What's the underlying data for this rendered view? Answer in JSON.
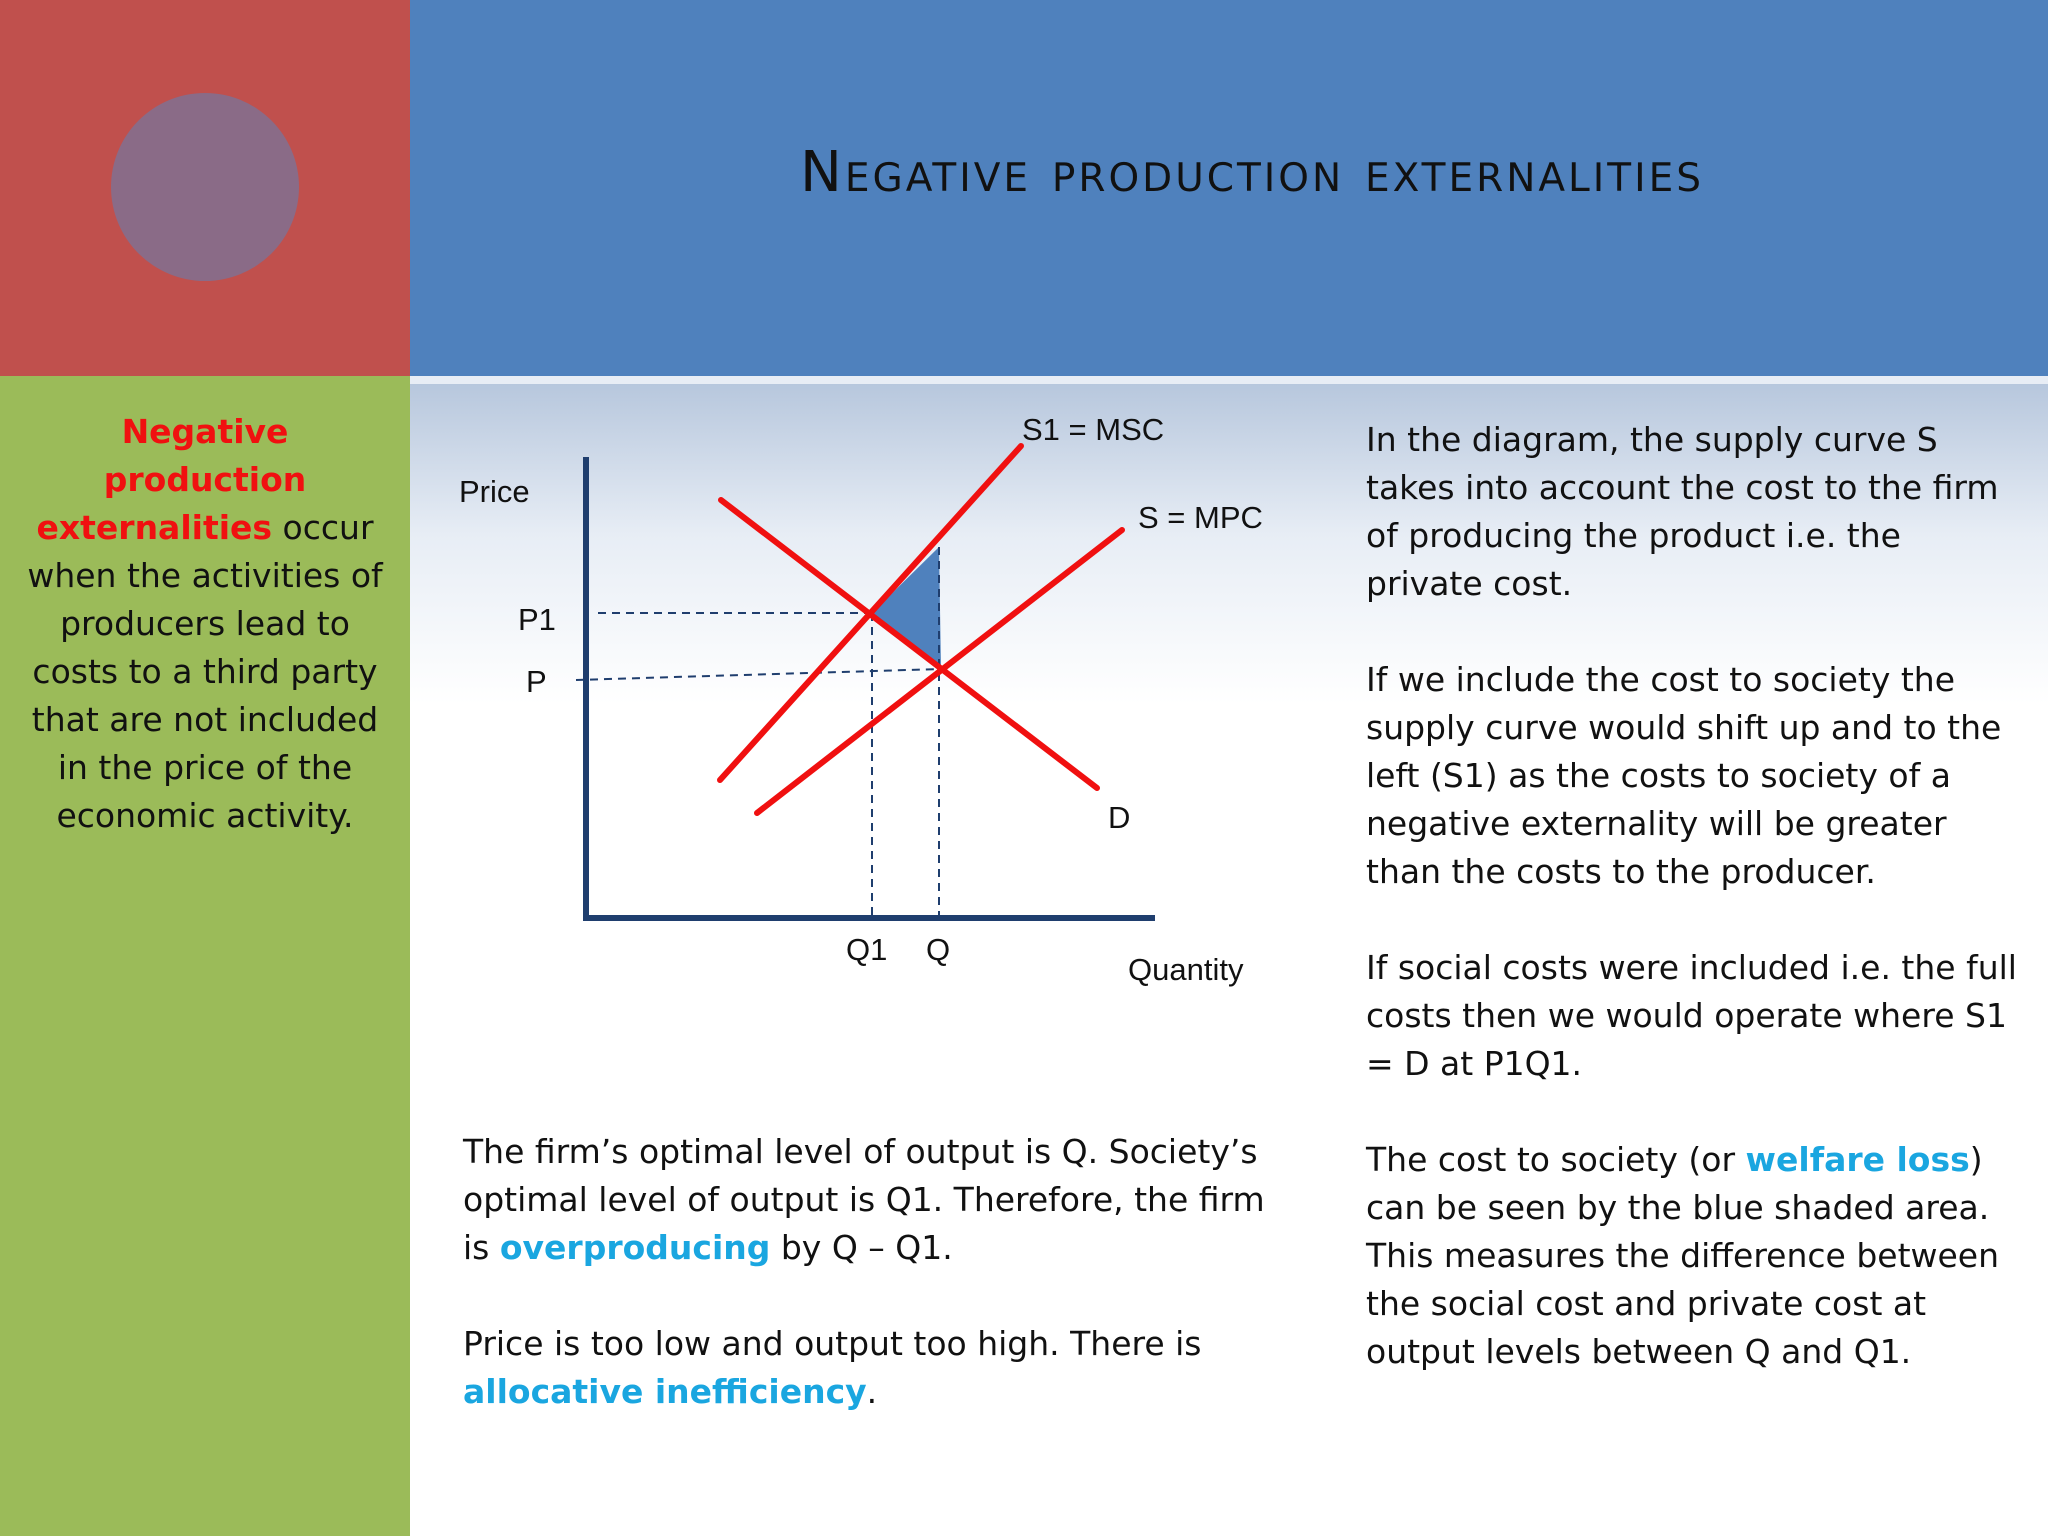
{
  "title": "Negative production externalities",
  "sidebar": {
    "highlight": "Negative production externalities",
    "rest": " occur when the activities of producers lead to costs to a third party that are not included in the price of the economic activity."
  },
  "diagram": {
    "s1_label": "S1 = MSC",
    "s_label": "S = MPC",
    "d_label": "D",
    "y_axis": "Price",
    "x_axis": "Quantity",
    "p1": "P1",
    "p": "P",
    "q1": "Q1",
    "q": "Q",
    "curve_color": "#f01010",
    "axis_color": "#1f3e6e",
    "shade_color": "#4f81bd"
  },
  "right_text": {
    "p1": "In the diagram, the  supply curve S takes into account the cost to the firm of producing the product i.e. the private cost.",
    "p2": "If we include the cost to society the supply curve would shift up and to the left (S1) as the costs to society of a negative externality will be greater than the costs to the producer.",
    "p3": "If social costs were included i.e. the full costs then we would operate where S1 = D at P1Q1.",
    "p4_before": "The cost to society (or ",
    "p4_highlight": "welfare loss",
    "p4_after": ") can be seen by the blue shaded area.  This measures the difference between the social cost and private cost at output levels between Q and Q1."
  },
  "bottom_text": {
    "p1_before": "The firm’s optimal level of output is Q.  Society’s optimal level of output is Q1.  Therefore, the firm is ",
    "p1_highlight": "overproducing",
    "p1_after": " by Q – Q1.",
    "p2_before": "Price is too low and output too high.  There is ",
    "p2_highlight": "allocative inefficiency",
    "p2_after": "."
  }
}
